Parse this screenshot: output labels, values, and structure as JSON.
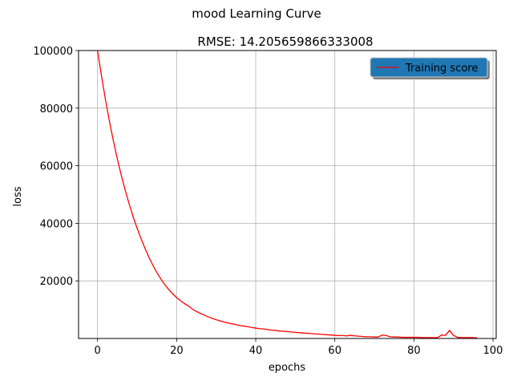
{
  "chart_data": {
    "type": "line",
    "suptitle": "mood Learning Curve",
    "title": "RMSE: 14.205659866333008",
    "xlabel": "epochs",
    "ylabel": "loss",
    "xlim": [
      -4.8,
      100.8
    ],
    "ylim": [
      0,
      100000
    ],
    "xticks": [
      0,
      20,
      40,
      60,
      80,
      100
    ],
    "yticks": [
      20000,
      40000,
      60000,
      80000,
      100000
    ],
    "grid": true,
    "legend": {
      "position": "upper right",
      "entries": [
        "Training score"
      ]
    },
    "colors": {
      "series": "#ff0000",
      "grid": "#b0b0b0",
      "legend_bg": "#1f77b4"
    },
    "series": [
      {
        "name": "Training score",
        "x": [
          0,
          1,
          2,
          3,
          4,
          5,
          6,
          7,
          8,
          9,
          10,
          11,
          12,
          13,
          14,
          15,
          16,
          17,
          18,
          19,
          20,
          21,
          22,
          23,
          24,
          25,
          26,
          27,
          28,
          29,
          30,
          31,
          32,
          33,
          34,
          35,
          36,
          37,
          38,
          39,
          40,
          41,
          42,
          43,
          44,
          45,
          46,
          47,
          48,
          49,
          50,
          51,
          52,
          53,
          54,
          55,
          56,
          57,
          58,
          59,
          60,
          61,
          62,
          63,
          64,
          65,
          66,
          67,
          68,
          69,
          70,
          71,
          72,
          73,
          74,
          75,
          76,
          77,
          78,
          79,
          80,
          81,
          82,
          83,
          84,
          85,
          86,
          87,
          88,
          89,
          90,
          91,
          92,
          93,
          94,
          95,
          96
        ],
        "y": [
          100000,
          91200,
          83000,
          75500,
          68700,
          62400,
          56700,
          51500,
          46700,
          42300,
          38300,
          34700,
          31300,
          28200,
          25400,
          22900,
          20700,
          18700,
          17000,
          15500,
          14200,
          13100,
          12100,
          11300,
          10200,
          9400,
          8700,
          8100,
          7500,
          7000,
          6500,
          6100,
          5700,
          5400,
          5100,
          4800,
          4500,
          4300,
          4100,
          3800,
          3600,
          3400,
          3300,
          3100,
          2900,
          2800,
          2600,
          2500,
          2400,
          2300,
          2100,
          2000,
          1900,
          1800,
          1700,
          1600,
          1500,
          1400,
          1300,
          1200,
          1100,
          1000,
          1000,
          900,
          1100,
          900,
          800,
          700,
          600,
          600,
          500,
          500,
          1200,
          1000,
          600,
          500,
          500,
          400,
          400,
          400,
          400,
          400,
          300,
          300,
          300,
          300,
          300,
          1200,
          1100,
          2800,
          1100,
          400,
          300,
          300,
          300,
          300,
          200
        ]
      }
    ]
  }
}
